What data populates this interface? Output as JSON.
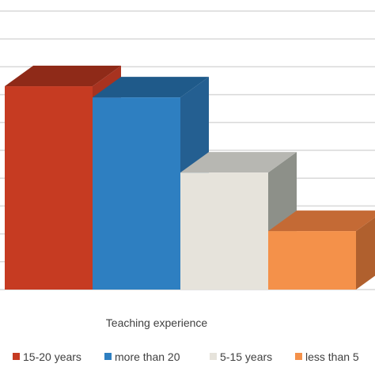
{
  "chart_data": {
    "type": "bar",
    "style": "3d-clustered-column",
    "xlabel": "Teaching experience",
    "ylabel": "",
    "grid": true,
    "legend_position": "bottom",
    "ylim": [
      0,
      10
    ],
    "series": [
      {
        "name": "15-20 years",
        "value": 7.3,
        "color": "#c63b22",
        "top_color": "#8f2a18",
        "side_color": "#a83320"
      },
      {
        "name": "more than 20",
        "value": 6.9,
        "color": "#2e7fc1",
        "top_color": "#1f5a8a",
        "side_color": "#245f91"
      },
      {
        "name": "5-15 years",
        "value": 4.2,
        "color": "#e6e3db",
        "top_color": "#b7b7b2",
        "side_color": "#8d9089"
      },
      {
        "name": "less than 5",
        "value": 2.1,
        "color": "#f4914a",
        "top_color": "#c46a35",
        "side_color": "#b0602e"
      }
    ]
  }
}
